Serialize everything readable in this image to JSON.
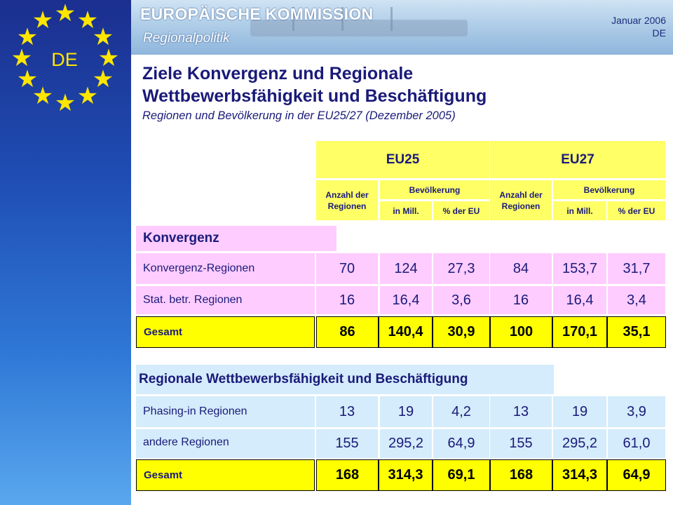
{
  "header": {
    "org": "EUROPÄISCHE KOMMISSION",
    "department": "Regionalpolitik",
    "date": "Januar 2006",
    "lang": "DE",
    "flag_label": "DE",
    "colors": {
      "flag_blue": "#1f4db3",
      "star_yellow": "#ffe600"
    }
  },
  "title": {
    "line1": "Ziele Konvergenz und Regionale",
    "line2": "Wettbewerbsfähigkeit und Beschäftigung",
    "subtitle": "Regionen und Bevölkerung in der EU25/27 (Dezember 2005)"
  },
  "table_header": {
    "eu25": "EU25",
    "eu27": "EU27",
    "count_label": "Anzahl der Regionen",
    "population": "Bevölkerung",
    "in_mill": "in Mill.",
    "pct_eu": "% der EU"
  },
  "convergence": {
    "title": "Konvergenz",
    "rows": [
      {
        "label": "Konvergenz-Regionen",
        "values": [
          "70",
          "124",
          "27,3",
          "84",
          "153,7",
          "31,7"
        ]
      },
      {
        "label": "Stat. betr. Regionen",
        "values": [
          "16",
          "16,4",
          "3,6",
          "16",
          "16,4",
          "3,4"
        ]
      },
      {
        "label": "Gesamt",
        "values": [
          "86",
          "140,4",
          "30,9",
          "100",
          "170,1",
          "35,1"
        ]
      }
    ]
  },
  "competitiveness": {
    "title": "Regionale Wettbewerbsfähigkeit und Beschäftigung",
    "rows": [
      {
        "label": "Phasing-in Regionen",
        "values": [
          "13",
          "19",
          "4,2",
          "13",
          "19",
          "3,9"
        ]
      },
      {
        "label": "andere Regionen",
        "values": [
          "155",
          "295,2",
          "64,9",
          "155",
          "295,2",
          "61,0"
        ]
      },
      {
        "label": "Gesamt",
        "values": [
          "168",
          "314,3",
          "69,1",
          "168",
          "314,3",
          "64,9"
        ]
      }
    ]
  }
}
